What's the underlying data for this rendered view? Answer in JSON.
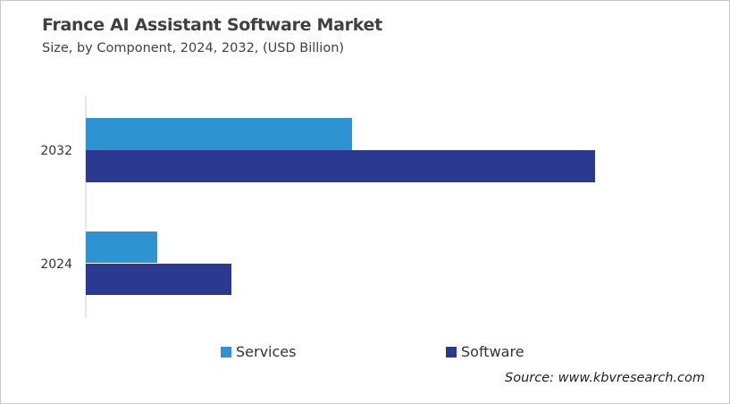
{
  "chart_data": {
    "type": "bar",
    "orientation": "horizontal",
    "title": "France AI Assistant Software Market",
    "subtitle": "Size, by Component, 2024, 2032, (USD Billion)",
    "categories": [
      "2032",
      "2024"
    ],
    "series": [
      {
        "name": "Services",
        "color": "#2e93d1",
        "values": [
          2.98,
          0.8
        ]
      },
      {
        "name": "Software",
        "color": "#2b3990",
        "values": [
          5.7,
          1.63
        ]
      }
    ],
    "xlim": [
      0,
      7
    ],
    "grid": false,
    "legend": "bottom",
    "source": "Source: www.kbvresearch.com"
  }
}
